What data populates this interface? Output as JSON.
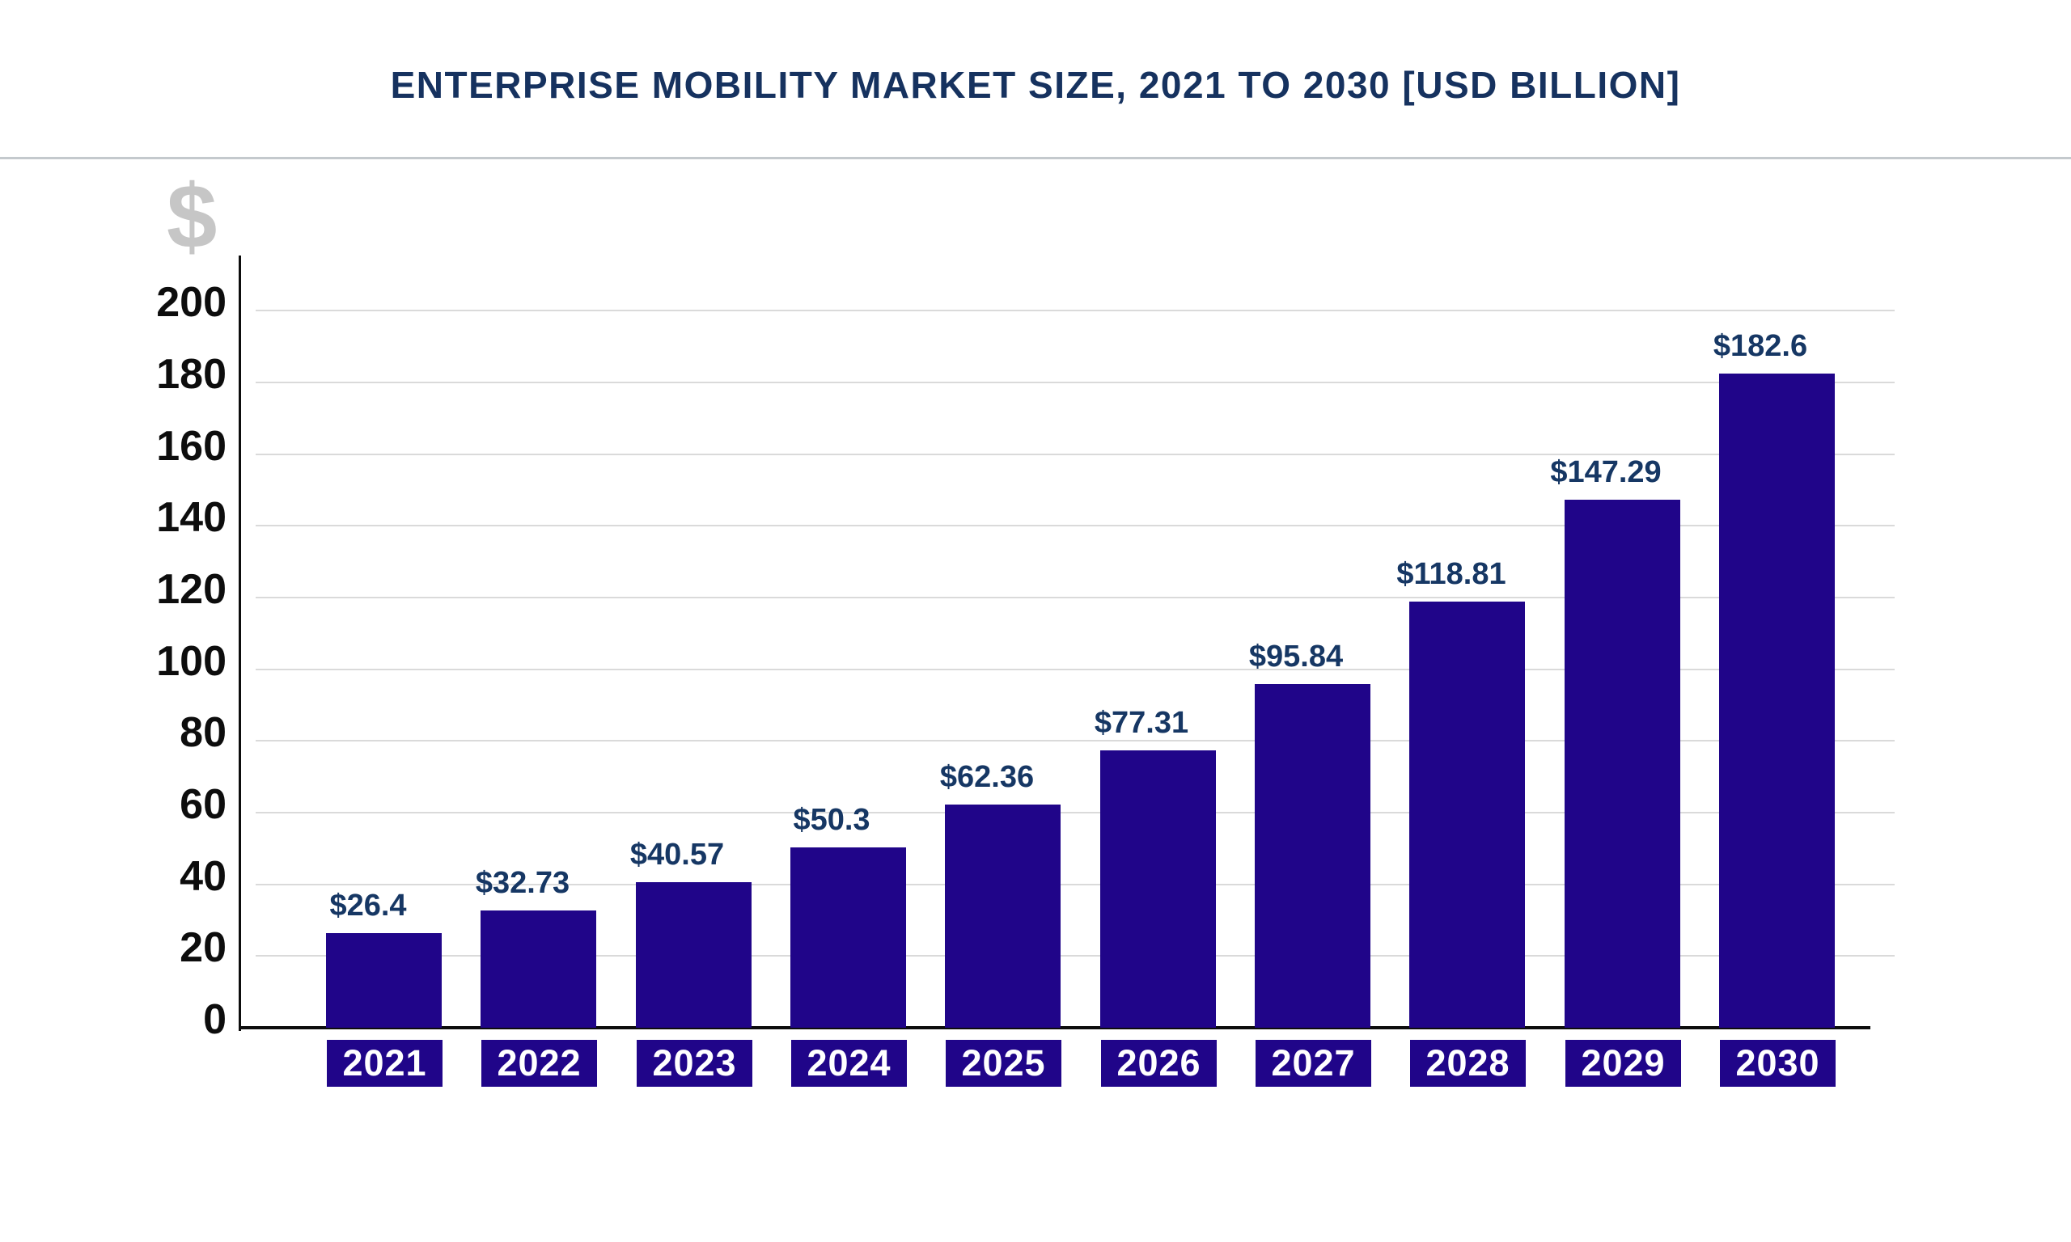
{
  "page": {
    "currency_symbol": "$"
  },
  "colors": {
    "bar": "#200589",
    "title": "#16325f",
    "value_label": "#163764",
    "axis": "#0d0d0d",
    "gridline": "#dadada",
    "tick_label": "#0d0d0d",
    "year_chip_bg": "#200589",
    "year_chip_text": "#ffffff",
    "dollar_watermark": "#c6c6c6",
    "divider": "#c4c9cd",
    "background": "#ffffff"
  },
  "chart_data": {
    "type": "bar",
    "title": "ENTERPRISE MOBILITY MARKET SIZE, 2021 TO 2030 [USD BILLION]",
    "categories": [
      "2021",
      "2022",
      "2023",
      "2024",
      "2025",
      "2026",
      "2027",
      "2028",
      "2029",
      "2030"
    ],
    "values": [
      26.4,
      32.73,
      40.57,
      50.3,
      62.36,
      77.31,
      95.84,
      118.81,
      147.29,
      182.6
    ],
    "value_labels": [
      "$26.4",
      "$32.73",
      "$40.57",
      "$50.3",
      "$62.36",
      "$77.31",
      "$95.84",
      "$118.81",
      "$147.29",
      "$182.6"
    ],
    "xlabel": "",
    "ylabel": "$",
    "ylim": [
      0,
      200
    ],
    "yticks": [
      0,
      20,
      40,
      60,
      80,
      100,
      120,
      140,
      160,
      180,
      200
    ],
    "ytick_labels": [
      "0",
      "20",
      "40",
      "60",
      "80",
      "100",
      "120",
      "140",
      "160",
      "180",
      "200"
    ],
    "grid": "horizontal-light",
    "legend": false,
    "units": "USD Billion"
  }
}
